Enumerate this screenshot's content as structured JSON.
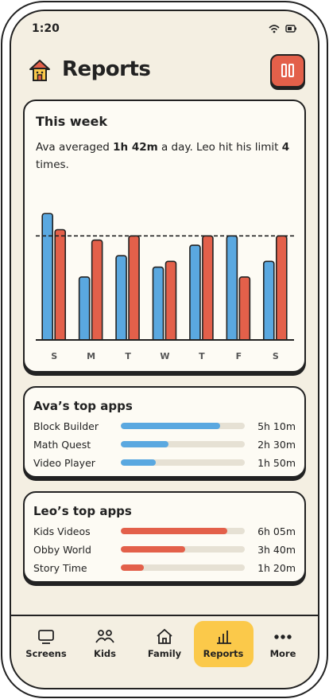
{
  "status_bar": {
    "time": "1:20"
  },
  "header": {
    "title": "Reports"
  },
  "week_card": {
    "title": "This week",
    "summary": [
      "Ava averaged ",
      "1h 42m",
      " a day. Leo hit his limit ",
      "4",
      " times."
    ]
  },
  "chart_data": {
    "type": "bar",
    "categories": [
      "S",
      "M",
      "T",
      "W",
      "T",
      "F",
      "S"
    ],
    "series": [
      {
        "color": "#5aa8e0",
        "values": [
          2.43,
          1.21,
          1.62,
          1.4,
          1.82,
          2.0,
          1.51
        ]
      },
      {
        "color": "#e3604a",
        "values": [
          2.12,
          1.92,
          2.0,
          1.51,
          2.0,
          1.21,
          2.0
        ]
      }
    ],
    "ylim": [
      0,
      3
    ],
    "limit": 2
  },
  "ava_apps": {
    "title": "Ava’s top apps",
    "color": "#5aa8e0",
    "xlim": [
      0,
      388
    ],
    "names": [
      "Block Builder",
      "Math Quest",
      "Video Player"
    ],
    "values": [
      310,
      150,
      110
    ],
    "value_labels": [
      "5h 10m",
      "2h 30m",
      "1h 50m"
    ]
  },
  "leo_apps": {
    "title": "Leo’s top apps",
    "color": "#e3604a",
    "xlim": [
      0,
      424
    ],
    "names": [
      "Kids Videos",
      "Obby World",
      "Story Time"
    ],
    "values": [
      365,
      220,
      80
    ],
    "value_labels": [
      "6h 05m",
      "3h 40m",
      "1h 20m"
    ]
  },
  "nav": {
    "items": [
      "Screens",
      "Kids",
      "Family",
      "Reports",
      "More"
    ],
    "active": 3
  }
}
